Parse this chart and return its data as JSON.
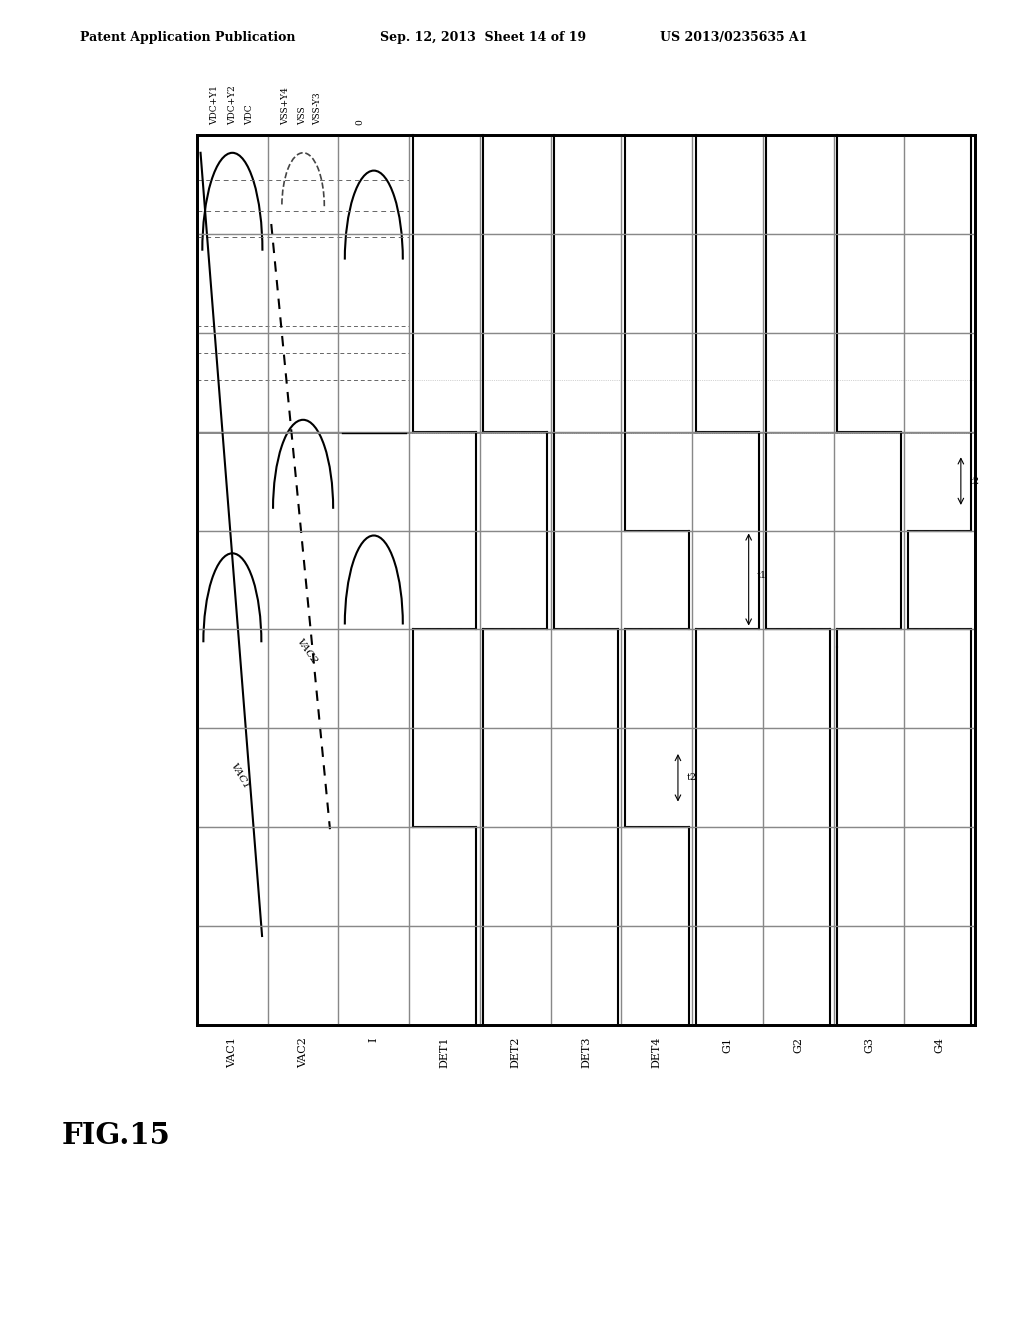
{
  "background": "#ffffff",
  "line_color": "#000000",
  "grid_color": "#888888",
  "patent_line1": "Patent Application Publication",
  "patent_line2": "Sep. 12, 2013  Sheet 14 of 19",
  "patent_line3": "US 2013/0235635 A1",
  "fig_label": "FIG.15",
  "col_labels": [
    "VAC1",
    "VAC2",
    "I",
    "DET1",
    "DET2",
    "DET3",
    "DET4",
    "G1",
    "G2",
    "G3",
    "G4"
  ],
  "top_labels": [
    "VDC+Y1",
    "VDC+Y2",
    "VDC",
    "VSS+Y4",
    "VSS",
    "VSS-Y3",
    "0"
  ],
  "timing_labels": [
    "t2",
    "t1",
    "t2"
  ]
}
